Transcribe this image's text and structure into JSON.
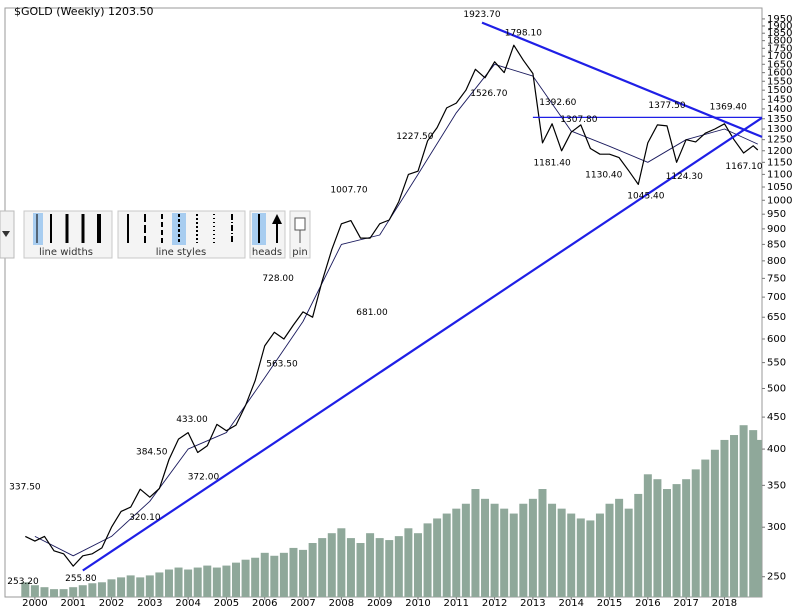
{
  "chart_data": {
    "type": "line",
    "title": "$GOLD (Weekly) 1203.50",
    "log_scale": true,
    "xlim": [
      1999.22,
      2018.98
    ],
    "xticks": [
      2000,
      2001,
      2002,
      2003,
      2004,
      2005,
      2006,
      2007,
      2008,
      2009,
      2010,
      2011,
      2012,
      2013,
      2014,
      2015,
      2016,
      2017,
      2018
    ],
    "ylim": [
      232,
      2030
    ],
    "yticks": [
      250,
      300,
      350,
      400,
      450,
      500,
      550,
      600,
      650,
      700,
      750,
      800,
      850,
      900,
      950,
      1000,
      1050,
      1100,
      1150,
      1200,
      1250,
      1300,
      1350,
      1400,
      1450,
      1500,
      1550,
      1600,
      1650,
      1700,
      1750,
      1800,
      1850,
      1900,
      1950
    ],
    "x": [
      1999.75,
      2000,
      2000.25,
      2000.5,
      2000.75,
      2001,
      2001.25,
      2001.5,
      2001.75,
      2002,
      2002.25,
      2002.5,
      2002.75,
      2003,
      2003.25,
      2003.5,
      2003.75,
      2004,
      2004.25,
      2004.5,
      2004.75,
      2005,
      2005.25,
      2005.5,
      2005.75,
      2006,
      2006.25,
      2006.5,
      2006.75,
      2007,
      2007.25,
      2007.5,
      2007.75,
      2008,
      2008.25,
      2008.5,
      2008.75,
      2009,
      2009.25,
      2009.5,
      2009.75,
      2010,
      2010.25,
      2010.5,
      2010.75,
      2011,
      2011.25,
      2011.5,
      2011.75,
      2012,
      2012.25,
      2012.5,
      2012.75,
      2013,
      2013.25,
      2013.5,
      2013.75,
      2014,
      2014.25,
      2014.5,
      2014.75,
      2015,
      2015.25,
      2015.5,
      2015.75,
      2016,
      2016.25,
      2016.5,
      2016.75,
      2017,
      2017.25,
      2017.5,
      2017.75,
      2018,
      2018.25,
      2018.5,
      2018.75,
      2018.87
    ],
    "series": [
      {
        "name": "price",
        "color": "#000000",
        "values": [
          290,
          285,
          290,
          275,
          272,
          260,
          270,
          272,
          278,
          300,
          318,
          323,
          345,
          335,
          346,
          385,
          415,
          425,
          395,
          405,
          438,
          428,
          437,
          470,
          515,
          585,
          615,
          600,
          632,
          663,
          650,
          743,
          834,
          917,
          928,
          870,
          870,
          917,
          930,
          995,
          1100,
          1113,
          1245,
          1307,
          1405,
          1430,
          1500,
          1620,
          1570,
          1665,
          1600,
          1770,
          1675,
          1595,
          1235,
          1325,
          1200,
          1285,
          1320,
          1210,
          1185,
          1185,
          1170,
          1115,
          1060,
          1235,
          1320,
          1315,
          1150,
          1250,
          1240,
          1280,
          1300,
          1325,
          1250,
          1190,
          1222,
          1203.5
        ]
      }
    ],
    "moving_average": {
      "color": "#1a1a5e",
      "x": [
        2000,
        2001,
        2002,
        2003,
        2004,
        2005,
        2006,
        2007,
        2008,
        2009,
        2010,
        2011,
        2012,
        2013,
        2014,
        2015,
        2016,
        2017,
        2018,
        2018.87
      ],
      "values": [
        290,
        270,
        290,
        330,
        400,
        425,
        520,
        640,
        850,
        880,
        1100,
        1380,
        1650,
        1580,
        1290,
        1220,
        1150,
        1250,
        1300,
        1230
      ]
    },
    "volume": {
      "color": "#8fa89a",
      "lim": [
        0,
        600
      ],
      "values": [
        15,
        12,
        10,
        8,
        8,
        10,
        12,
        14,
        15,
        18,
        20,
        22,
        20,
        22,
        25,
        28,
        30,
        28,
        30,
        32,
        30,
        32,
        35,
        38,
        40,
        45,
        42,
        45,
        50,
        48,
        55,
        60,
        65,
        70,
        60,
        55,
        65,
        60,
        58,
        62,
        70,
        65,
        75,
        80,
        85,
        90,
        95,
        110,
        100,
        95,
        90,
        85,
        95,
        100,
        110,
        95,
        90,
        85,
        80,
        78,
        85,
        95,
        100,
        90,
        105,
        125,
        120,
        110,
        115,
        120,
        130,
        140,
        150,
        160,
        165,
        175,
        170,
        160
      ]
    },
    "annotations": [
      {
        "x": 1999.74,
        "value": 337.5,
        "label": "337.50"
      },
      {
        "x": 1999.5,
        "value": 253.2,
        "label": "253.20"
      },
      {
        "x": 2001.2,
        "value": 255.8,
        "label": "255.80"
      },
      {
        "x": 2002.87,
        "value": 320.1,
        "label": "320.10"
      },
      {
        "x": 2003.05,
        "value": 384.5,
        "label": "384.50"
      },
      {
        "x": 2004.1,
        "value": 433,
        "label": "433.00"
      },
      {
        "x": 2004.4,
        "value": 372,
        "label": "372.00"
      },
      {
        "x": 2006.35,
        "value": 728,
        "label": "728.00"
      },
      {
        "x": 2006.45,
        "value": 563.5,
        "label": "563.50"
      },
      {
        "x": 2008.2,
        "value": 1007.7,
        "label": "1007.70"
      },
      {
        "x": 2008.8,
        "value": 681,
        "label": "681.00"
      },
      {
        "x": 2009.92,
        "value": 1227.5,
        "label": "1227.50"
      },
      {
        "x": 2011.67,
        "value": 1923.7,
        "label": "1923.70"
      },
      {
        "x": 2011.85,
        "value": 1526.7,
        "label": "1526.70"
      },
      {
        "x": 2012.75,
        "value": 1798.1,
        "label": "1798.10"
      },
      {
        "x": 2013.65,
        "value": 1392.6,
        "label": "1392.60"
      },
      {
        "x": 2013.5,
        "value": 1181.4,
        "label": "1181.40"
      },
      {
        "x": 2014.2,
        "value": 1307.8,
        "label": "1307.80"
      },
      {
        "x": 2014.85,
        "value": 1130.4,
        "label": "1130.40"
      },
      {
        "x": 2015.95,
        "value": 1045.4,
        "label": "1045.40"
      },
      {
        "x": 2016.5,
        "value": 1377.5,
        "label": "1377.50"
      },
      {
        "x": 2016.95,
        "value": 1124.3,
        "label": "1124.30"
      },
      {
        "x": 2018.1,
        "value": 1369.4,
        "label": "1369.40"
      },
      {
        "x": 2018.62,
        "value": 1167.1,
        "label": "1167.10"
      }
    ],
    "trendlines": {
      "color": "#1f1fe6",
      "lines": [
        {
          "x": [
            2001.25,
            2018.98
          ],
          "values": [
            255.8,
            1355
          ]
        },
        {
          "x": [
            2011.67,
            2018.98
          ],
          "values": [
            1923.7,
            1263
          ]
        },
        {
          "x": [
            2013.0,
            2018.98
          ],
          "values": [
            1357,
            1357
          ]
        }
      ]
    }
  },
  "toolbar": {
    "line_widths": "line widths",
    "line_styles": "line styles",
    "heads": "heads",
    "pin": "pin"
  }
}
